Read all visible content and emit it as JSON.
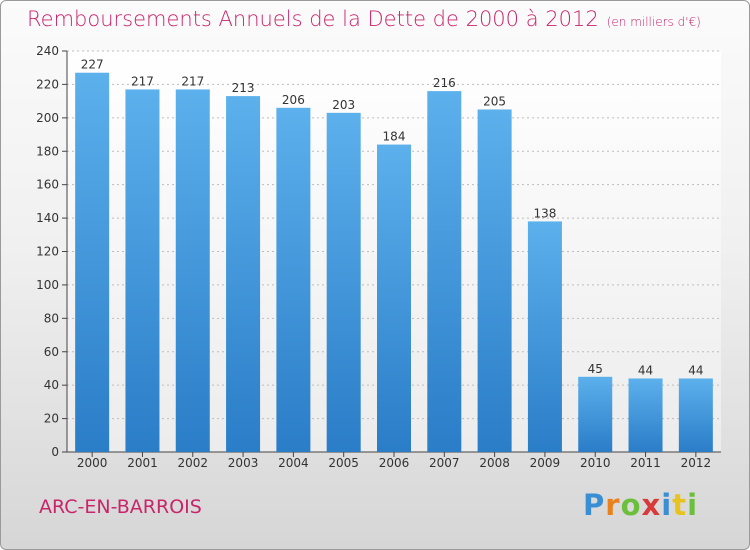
{
  "title": "Remboursements Annuels de la Dette de 2000 à 2012",
  "unit": "(en milliers d'€)",
  "commune": "ARC-EN-BARROIS",
  "logo": {
    "letters": [
      "P",
      "r",
      "o",
      "x",
      "i",
      "t",
      "i"
    ],
    "colors": [
      "#3a8fd4",
      "#e8821e",
      "#6cbf3c",
      "#d83a3a",
      "#3a8fd4",
      "#e8c21e",
      "#6cbf3c"
    ]
  },
  "colors": {
    "bar": "#3d93de",
    "title": "#c8256b"
  },
  "chart_data": {
    "type": "bar",
    "title": "Remboursements Annuels de la Dette de 2000 à 2012",
    "categories": [
      "2000",
      "2001",
      "2002",
      "2003",
      "2004",
      "2005",
      "2006",
      "2007",
      "2008",
      "2009",
      "2010",
      "2011",
      "2012"
    ],
    "values": [
      227,
      217,
      217,
      213,
      206,
      203,
      184,
      216,
      205,
      138,
      45,
      44,
      44
    ],
    "ylim": [
      0,
      240
    ],
    "yticks": [
      0,
      20,
      40,
      60,
      80,
      100,
      120,
      140,
      160,
      180,
      200,
      220,
      240
    ],
    "grid": true
  }
}
